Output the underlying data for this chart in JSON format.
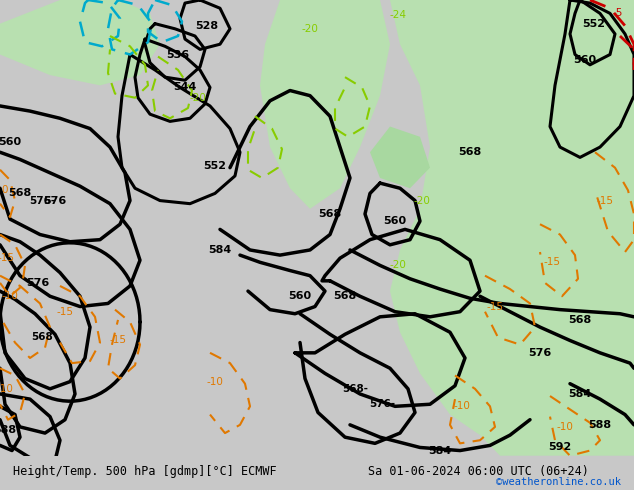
{
  "title_left": "Height/Temp. 500 hPa [gdmp][°C] ECMWF",
  "title_right": "Sa 01-06-2024 06:00 UTC (06+24)",
  "watermark": "©weatheronline.co.uk",
  "bg_color": "#d8d8d8",
  "green_color": "#b8e0b0",
  "fig_width": 6.34,
  "fig_height": 4.9,
  "dpi": 100
}
